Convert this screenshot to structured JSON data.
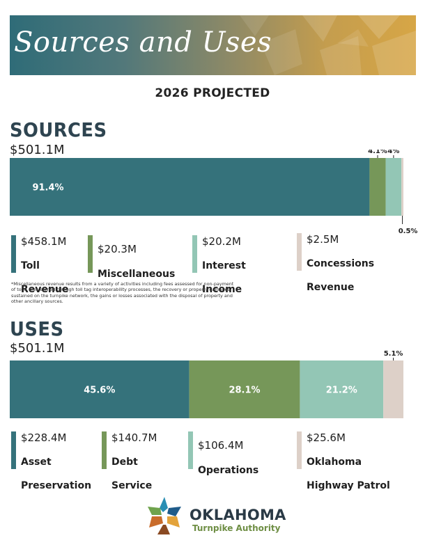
{
  "banner": {
    "title": "Sources and Uses"
  },
  "subtitle": "2026 PROJECTED",
  "colors": {
    "teal": "#35727b",
    "green": "#769759",
    "mint": "#93c6b5",
    "beige": "#ddd0c8"
  },
  "chart_data": [
    {
      "type": "bar",
      "orientation": "horizontal-stacked",
      "title": "SOURCES",
      "total": "$501.1M",
      "series": [
        {
          "name": "Toll Revenue",
          "amount": "$458.1M",
          "value": 91.4,
          "label": "91.4%",
          "color": "#35727b",
          "legend_lines": [
            "Toll",
            "Revenue"
          ]
        },
        {
          "name": "Miscellaneous",
          "amount": "$20.3M",
          "value": 4.1,
          "label": "4.1%",
          "color": "#769759",
          "legend_lines": [
            "Miscellaneous"
          ]
        },
        {
          "name": "Interest Income",
          "amount": "$20.2M",
          "value": 4.0,
          "label": "4%",
          "color": "#93c6b5",
          "legend_lines": [
            "Interest",
            "Income"
          ]
        },
        {
          "name": "Concessions Revenue",
          "amount": "$2.5M",
          "value": 0.5,
          "label": "0.5%",
          "color": "#ddd0c8",
          "legend_lines": [
            "Concessions",
            "Revenue"
          ]
        }
      ],
      "footnote": "*Miscellaneous revenue results from a variety of activities including fees assessed for non-payment of tolls, fees earned through toll tag interoperability processes, the recovery or property damages sustained on the turnpike network, the gains or losses associated with the disposal of property and other ancillary sources."
    },
    {
      "type": "bar",
      "orientation": "horizontal-stacked",
      "title": "USES",
      "total": "$501.1M",
      "series": [
        {
          "name": "Asset Preservation",
          "amount": "$228.4M",
          "value": 45.6,
          "label": "45.6%",
          "color": "#35727b",
          "legend_lines": [
            "Asset",
            "Preservation"
          ]
        },
        {
          "name": "Debt Service",
          "amount": "$140.7M",
          "value": 28.1,
          "label": "28.1%",
          "color": "#769759",
          "legend_lines": [
            "Debt",
            "Service"
          ]
        },
        {
          "name": "Operations",
          "amount": "$106.4M",
          "value": 21.2,
          "label": "21.2%",
          "color": "#93c6b5",
          "legend_lines": [
            "Operations"
          ]
        },
        {
          "name": "Oklahoma Highway Patrol",
          "amount": "$25.6M",
          "value": 5.1,
          "label": "5.1%",
          "color": "#ddd0c8",
          "legend_lines": [
            "Oklahoma",
            "Highway Patrol"
          ]
        }
      ]
    }
  ],
  "logo": {
    "name": "OKLAHOMA",
    "subtitle": "Turnpike Authority"
  }
}
